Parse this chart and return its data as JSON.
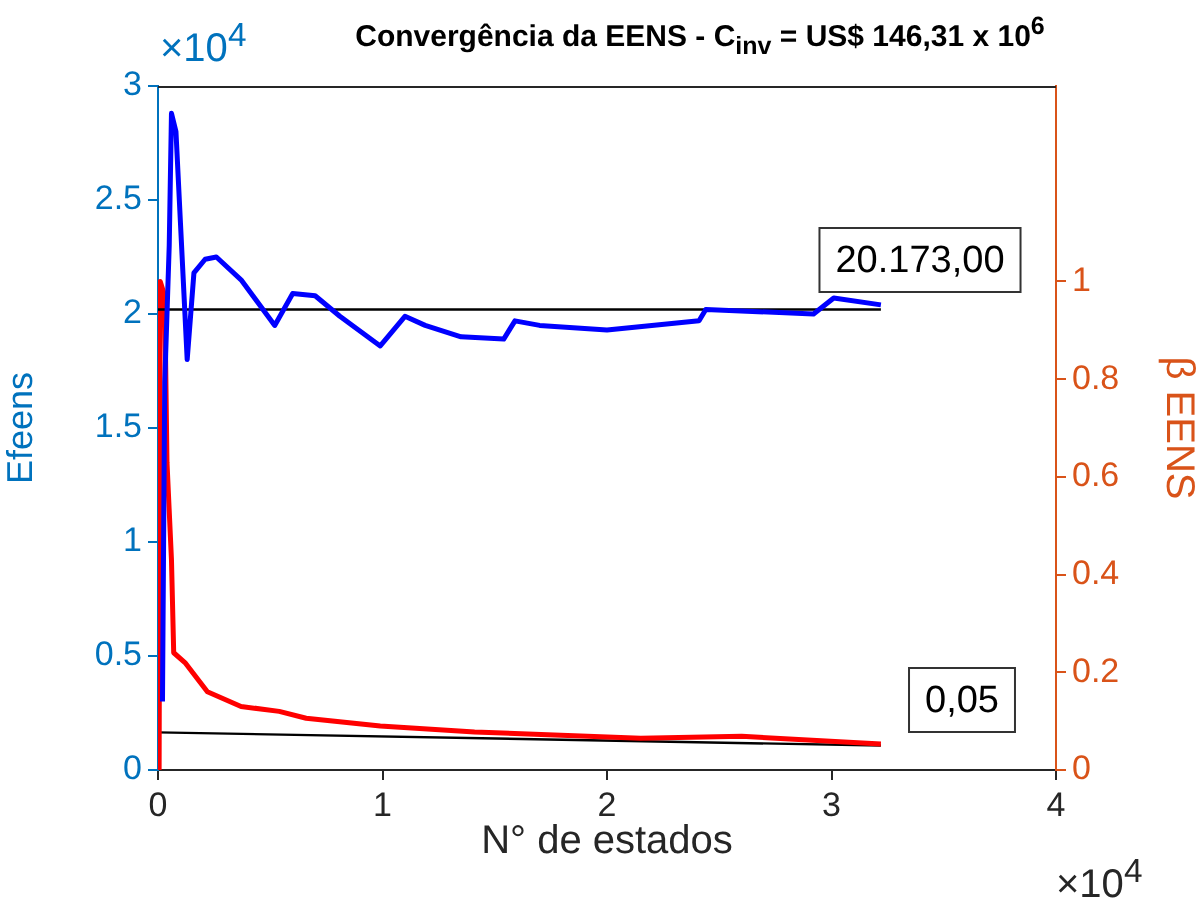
{
  "chart_data": {
    "type": "line",
    "title": "Convergência da EENS - C$_{inv}$ = US$ 146,31 x 10$^{6}$",
    "xlabel": "N° de estados",
    "ylabel": "Efeens",
    "y2label": "β EENS",
    "annotations": [
      "×10$^{4}$",
      "×10$^{4}$",
      "20.173,00",
      "0,05"
    ],
    "xlim": [
      0,
      4
    ],
    "xticks": [
      0,
      1,
      2,
      3,
      4
    ],
    "ylim": [
      0,
      3
    ],
    "yticks": [
      0,
      0.5,
      1,
      1.5,
      2,
      2.5,
      3
    ],
    "y2lim": [
      0,
      1.4
    ],
    "y2ticks": [
      0,
      0.2,
      0.4,
      0.6,
      0.8,
      1
    ],
    "grid": false,
    "legend": false,
    "marker": "none",
    "line_style": "solid",
    "series": [
      {
        "color": "#0000ff",
        "x": [
          0.02,
          0.03,
          0.05,
          0.06,
          0.08,
          0.1,
          0.13,
          0.16,
          0.21,
          0.26,
          0.37,
          0.52,
          0.6,
          0.7,
          0.81,
          0.99,
          1.1,
          1.19,
          1.35,
          1.54,
          1.59,
          1.7,
          2.0,
          2.41,
          2.44,
          2.92,
          3.01,
          3.22
        ],
        "values": [
          0.3,
          1.7,
          2.3,
          2.88,
          2.8,
          2.4,
          1.8,
          2.18,
          2.24,
          2.25,
          2.15,
          1.95,
          2.09,
          2.08,
          1.99,
          1.86,
          1.99,
          1.95,
          1.9,
          1.89,
          1.97,
          1.95,
          1.93,
          1.97,
          2.02,
          2.0,
          2.07,
          2.04
        ]
      },
      {
        "color": "#000000",
        "x": [
          0,
          3.22
        ],
        "values": [
          2.02,
          2.02
        ]
      },
      {
        "color": "#ff0000",
        "axis": "y2",
        "x": [
          0.005,
          0.01,
          0.03,
          0.04,
          0.06,
          0.07,
          0.12,
          0.22,
          0.37,
          0.54,
          0.66,
          0.99,
          1.41,
          2.15,
          2.6,
          3.22
        ],
        "values": [
          0,
          1.0,
          0.97,
          0.63,
          0.43,
          0.24,
          0.22,
          0.16,
          0.13,
          0.12,
          0.106,
          0.09,
          0.078,
          0.065,
          0.069,
          0.053
        ]
      },
      {
        "color": "#000000",
        "axis": "y2",
        "x": [
          0,
          3.22
        ],
        "values": [
          0.077,
          0.05
        ]
      }
    ]
  }
}
